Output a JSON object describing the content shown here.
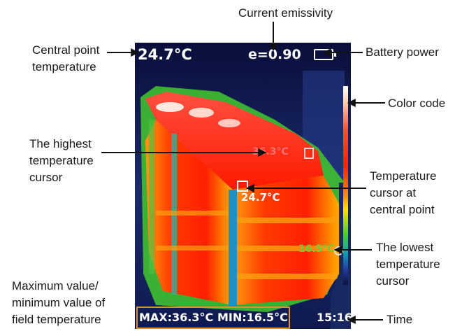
{
  "callouts": {
    "emissivity": "Current emissivity",
    "center_temp": [
      "Central point",
      "temperature"
    ],
    "battery": "Battery power",
    "color_code": "Color code",
    "highest": [
      "The highest",
      "temperature",
      "cursor"
    ],
    "temp_cursor": [
      "Temperature",
      "cursor at",
      "central point"
    ],
    "lowest": [
      "The lowest",
      "temperature",
      "cursor"
    ],
    "maxmin": [
      "Maximum value/",
      "minimum value of",
      "field temperature"
    ],
    "time": "Time"
  },
  "screen": {
    "center_temp": "24.7°C",
    "emissivity": "e=0.90",
    "highest_temp": "36.3°C",
    "center_cursor_temp": "24.7°C",
    "lowest_temp": "16.5°C",
    "max": "MAX:36.3°C",
    "min": "MIN:16.5°C",
    "time": "15:16"
  },
  "colors": {
    "screen_background": "#0a0f3a",
    "hot": "#ff2a00",
    "warm": "#ffa000",
    "mid": "#40d030",
    "cool": "#1070c0",
    "maxmin_frame": "#e09020"
  }
}
